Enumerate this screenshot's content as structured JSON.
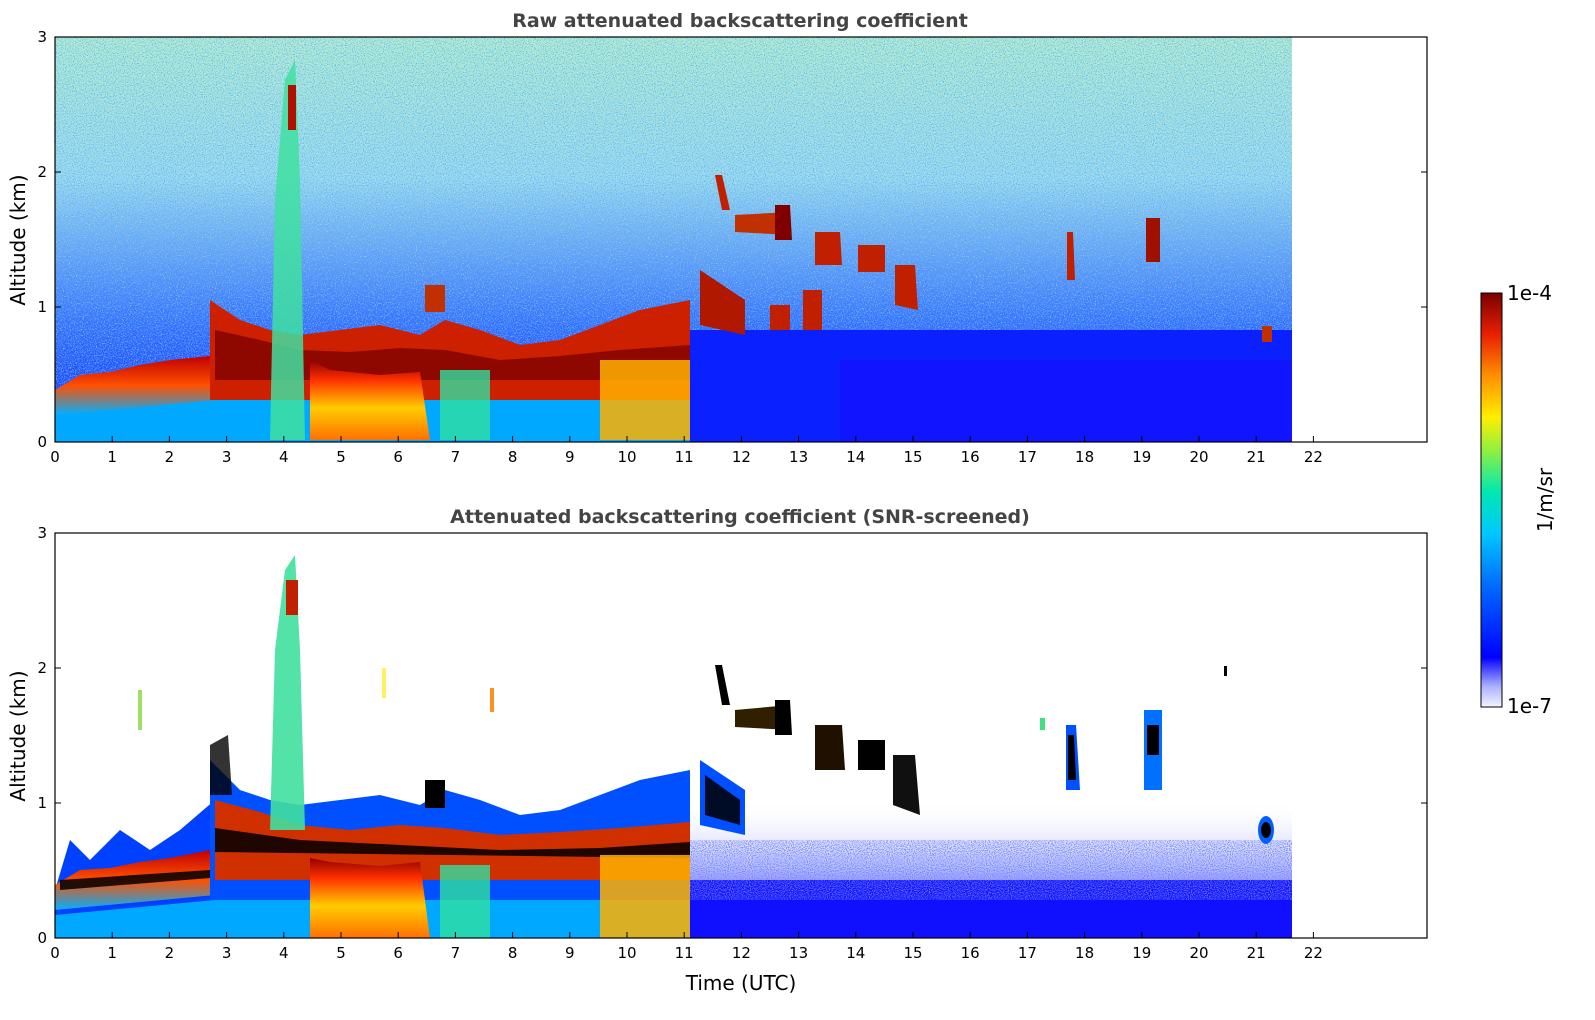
{
  "chart_data": [
    {
      "type": "heatmap",
      "title": "Raw attenuated backscattering coefficient",
      "xlabel": "",
      "ylabel": "Altitude (km)",
      "xlim": [
        0,
        24
      ],
      "ylim": [
        0,
        3
      ],
      "x_ticks": [
        "0",
        "1",
        "2",
        "3",
        "4",
        "5",
        "6",
        "7",
        "8",
        "9",
        "10",
        "11",
        "12",
        "13",
        "14",
        "15",
        "16",
        "17",
        "18",
        "19",
        "20",
        "21",
        "22"
      ],
      "y_ticks": [
        "0",
        "1",
        "2",
        "3"
      ],
      "data_extent_hours": 21.6,
      "features": [
        {
          "name": "boundary-layer aerosol",
          "t_start": 0,
          "t_end": 2.8,
          "altitude_km": 0.3
        },
        {
          "name": "aerosol/cloud layer",
          "t_start": 2.8,
          "t_end": 11.2,
          "altitude_km": 0.7
        },
        {
          "name": "high plume",
          "t_start": 4.0,
          "t_end": 4.3,
          "altitude_km": 2.5
        },
        {
          "name": "cloud band",
          "t_start": 11.5,
          "t_end": 15.0,
          "altitude_km": 1.5
        },
        {
          "name": "isolated cloud",
          "t_start": 17.8,
          "t_end": 18.1,
          "altitude_km": 1.4
        },
        {
          "name": "isolated cloud",
          "t_start": 19.1,
          "t_end": 19.3,
          "altitude_km": 1.45
        },
        {
          "name": "isolated cloud",
          "t_start": 21.1,
          "t_end": 21.3,
          "altitude_km": 0.78
        }
      ]
    },
    {
      "type": "heatmap",
      "title": "Attenuated backscattering coefficient (SNR-screened)",
      "xlabel": "Time (UTC)",
      "ylabel": "Altitude (km)",
      "xlim": [
        0,
        24
      ],
      "ylim": [
        0,
        3
      ],
      "x_ticks": [
        "0",
        "1",
        "2",
        "3",
        "4",
        "5",
        "6",
        "7",
        "8",
        "9",
        "10",
        "11",
        "12",
        "13",
        "14",
        "15",
        "16",
        "17",
        "18",
        "19",
        "20",
        "21",
        "22"
      ],
      "y_ticks": [
        "0",
        "1",
        "2",
        "3"
      ],
      "data_extent_hours": 21.6,
      "features": [
        {
          "name": "boundary-layer aerosol",
          "t_start": 0,
          "t_end": 2.8,
          "altitude_km": 0.3
        },
        {
          "name": "aerosol/cloud layer",
          "t_start": 2.8,
          "t_end": 11.2,
          "altitude_km": 0.7
        },
        {
          "name": "high plume",
          "t_start": 4.0,
          "t_end": 4.3,
          "altitude_km": 2.5
        },
        {
          "name": "cloud band",
          "t_start": 11.5,
          "t_end": 15.0,
          "altitude_km": 1.5
        },
        {
          "name": "isolated cloud",
          "t_start": 17.8,
          "t_end": 18.1,
          "altitude_km": 1.4
        },
        {
          "name": "isolated cloud",
          "t_start": 19.1,
          "t_end": 19.3,
          "altitude_km": 1.45
        },
        {
          "name": "isolated cloud",
          "t_start": 21.1,
          "t_end": 21.3,
          "altitude_km": 0.78
        }
      ]
    }
  ],
  "colorbar": {
    "label": "1/m/sr",
    "min_label": "1e-7",
    "max_label": "1e-4",
    "colors": [
      "#ffffff",
      "#0000ff",
      "#00aaff",
      "#00e0c0",
      "#8cf050",
      "#ffee00",
      "#ff8800",
      "#e02000",
      "#800000"
    ]
  }
}
